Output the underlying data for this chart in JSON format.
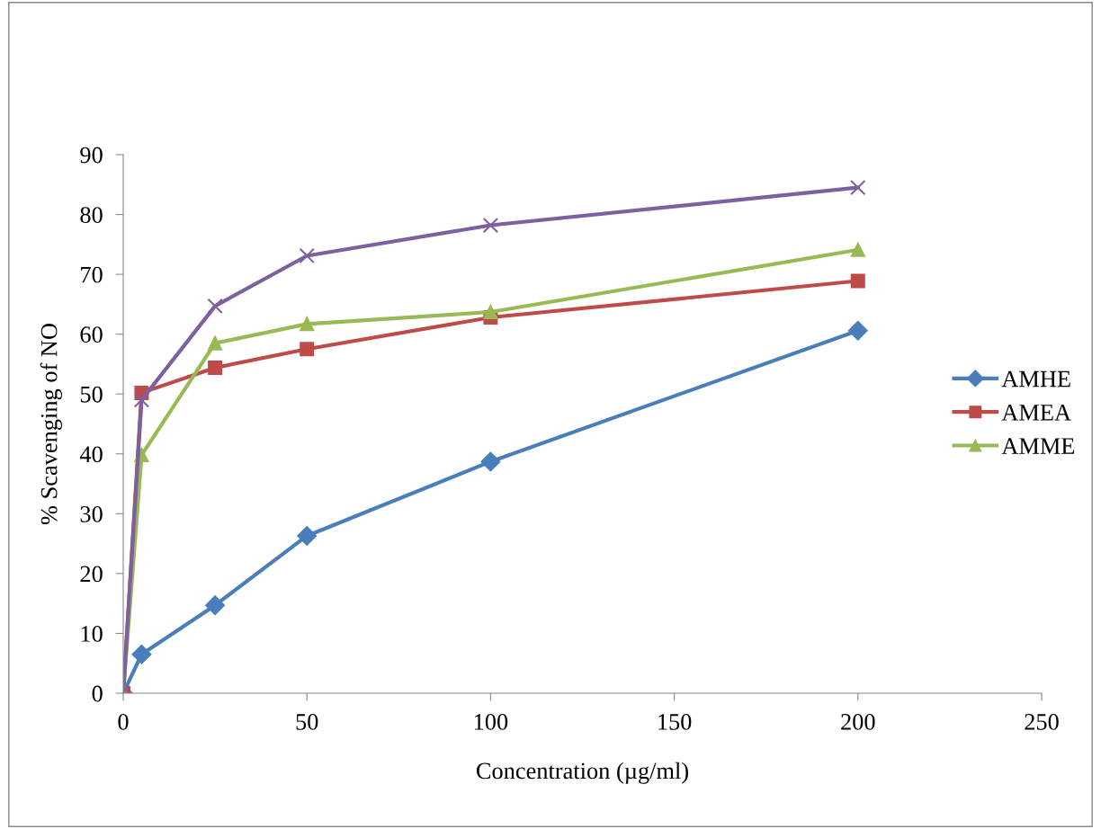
{
  "chart_data": {
    "type": "line",
    "xlabel": "Concentration (µg/ml)",
    "ylabel": "% Scavenging of NO",
    "x": [
      0,
      5,
      25,
      50,
      100,
      200
    ],
    "series": [
      {
        "name": "AMHE",
        "color": "#4a7ebb",
        "marker": "diamond",
        "values": [
          0,
          6.5,
          14.7,
          26.3,
          38.7,
          60.6
        ]
      },
      {
        "name": "AMEA",
        "color": "#be4b48",
        "marker": "square",
        "values": [
          0,
          50.2,
          54.4,
          57.5,
          62.8,
          68.9
        ]
      },
      {
        "name": "AMME",
        "color": "#98b954",
        "marker": "triangle",
        "values": [
          0,
          39.8,
          58.5,
          61.7,
          63.7,
          74.1
        ]
      },
      {
        "color": "#7d60a0",
        "marker": "cross",
        "values": [
          0,
          49,
          64.7,
          73.1,
          78.2,
          84.5
        ]
      }
    ],
    "xlim": [
      0,
      250
    ],
    "xticks": [
      0,
      50,
      100,
      150,
      200,
      250
    ],
    "ylim": [
      0,
      90
    ],
    "yticks": [
      0,
      10,
      20,
      30,
      40,
      50,
      60,
      70,
      80,
      90
    ],
    "grid": false,
    "legend": "right",
    "line_style": "solid"
  }
}
